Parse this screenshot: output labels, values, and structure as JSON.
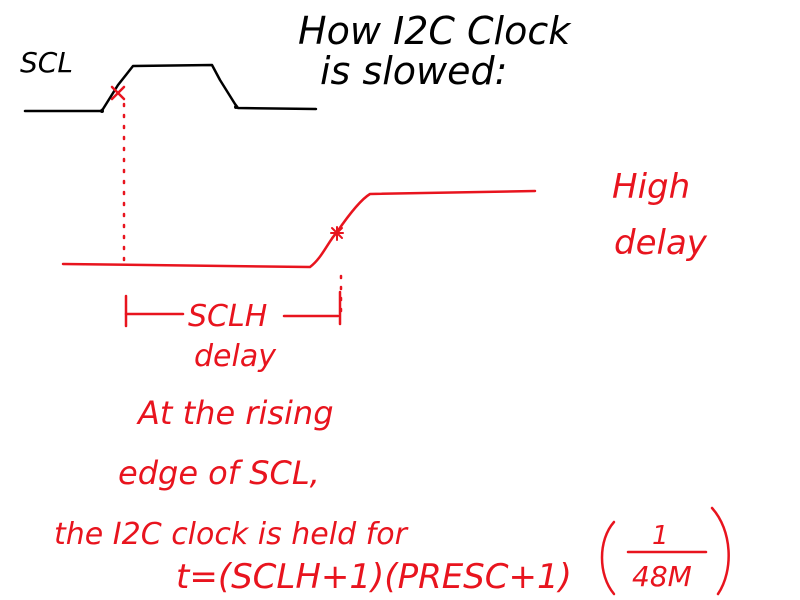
{
  "title": {
    "line1": "How I2C Clock",
    "line2": "is slowed:"
  },
  "scl_label": "SCL",
  "high_delay": {
    "line1": "High",
    "line2": "delay"
  },
  "sclh_delay": {
    "line1": "SCLH",
    "line2": "delay"
  },
  "explanation": {
    "line1": "At the rising",
    "line2": "edge of SCL,",
    "line3": "the I2C clock is held for",
    "formula": "t=(SCLH+1)(PRESC+1)",
    "fraction_numerator": "1",
    "fraction_denominator": "48M"
  },
  "colors": {
    "ink_black": "#000000",
    "ink_red": "#e8141e",
    "background": "#ffffff"
  }
}
